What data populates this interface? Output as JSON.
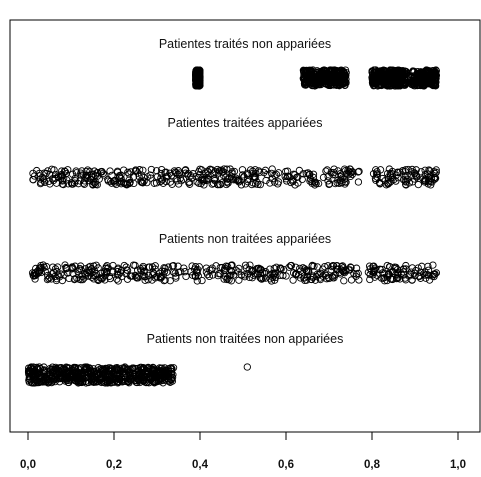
{
  "chart_data": {
    "type": "scatter",
    "title": "",
    "xlabel": "",
    "ylabel": "",
    "xlim": [
      0.0,
      1.0
    ],
    "x_ticks": [
      {
        "value": 0.0,
        "label": "0,0"
      },
      {
        "value": 0.2,
        "label": "0,2"
      },
      {
        "value": 0.4,
        "label": "0,4"
      },
      {
        "value": 0.6,
        "label": "0,6"
      },
      {
        "value": 0.8,
        "label": "0,8"
      },
      {
        "value": 1.0,
        "label": "1,0"
      }
    ],
    "grid": false,
    "marker": "open-circle",
    "marker_color": "#000000",
    "groups": [
      {
        "label": "Patientes traités non appariées",
        "clusters": [
          {
            "x_range": [
              0.39,
              0.4
            ],
            "density": "dense"
          },
          {
            "x_range": [
              0.64,
              0.74
            ],
            "density": "dense"
          },
          {
            "x_range": [
              0.8,
              0.88
            ],
            "density": "dense"
          },
          {
            "x_range": [
              0.89,
              0.95
            ],
            "density": "medium"
          }
        ],
        "isolated_points": []
      },
      {
        "label": "Patientes traitées appariées",
        "clusters": [
          {
            "x_range": [
              0.01,
              0.77
            ],
            "density": "dense"
          },
          {
            "x_range": [
              0.8,
              0.95
            ],
            "density": "sparse"
          }
        ],
        "isolated_points": []
      },
      {
        "label": "Patients non traitées appariées",
        "clusters": [
          {
            "x_range": [
              0.01,
              0.77
            ],
            "density": "dense"
          },
          {
            "x_range": [
              0.79,
              0.95
            ],
            "density": "sparse"
          }
        ],
        "isolated_points": []
      },
      {
        "label": "Patients non traitées non appariées",
        "clusters": [
          {
            "x_range": [
              0.0,
              0.34
            ],
            "density": "very dense"
          }
        ],
        "isolated_points": [
          0.51
        ]
      }
    ]
  }
}
